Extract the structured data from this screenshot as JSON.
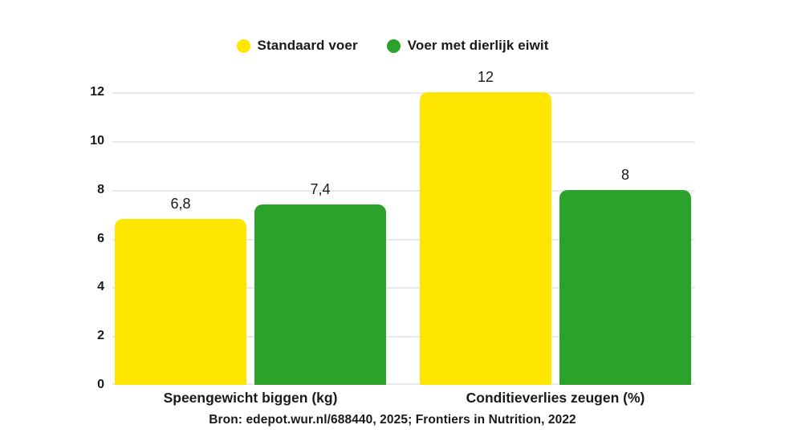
{
  "chart_data": {
    "type": "bar",
    "title": "",
    "xlabel": "",
    "ylabel": "",
    "categories": [
      "Speengewicht biggen (kg)",
      "Conditieverlies zeugen (%)"
    ],
    "series": [
      {
        "name": "Standaard voer",
        "color": "#ffe600",
        "values": [
          6.8,
          12
        ],
        "value_labels": [
          "6,8",
          "12"
        ]
      },
      {
        "name": "Voer met dierlijk eiwit",
        "color": "#2ba32b",
        "values": [
          7.4,
          8
        ],
        "value_labels": [
          "7,4",
          "8"
        ]
      }
    ],
    "ylim": [
      0,
      12
    ],
    "yticks": [
      0,
      2,
      4,
      6,
      8,
      10,
      12
    ],
    "grid": true,
    "legend_position": "top center"
  },
  "legend": {
    "items": [
      {
        "label": "Standaard voer",
        "color": "#ffe600"
      },
      {
        "label": "Voer met dierlijk eiwit",
        "color": "#2ba32b"
      }
    ]
  },
  "footer": {
    "source": "Bron: edepot.wur.nl/688440, 2025; Frontiers in Nutrition, 2022"
  },
  "colors": {
    "background": "#ffffff",
    "gridline": "#e9e9e9",
    "text": "#1a1a1a"
  }
}
